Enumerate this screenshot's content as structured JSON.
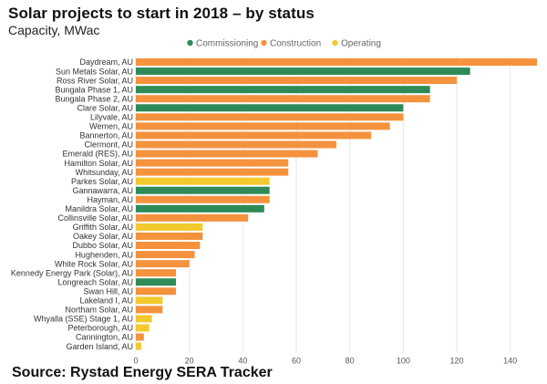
{
  "title": "Solar projects to start in 2018 – by status",
  "subtitle": "Capacity, MWac",
  "source": "Source: Rystad Energy SERA Tracker",
  "colors": {
    "Commissioning": "#2e8b57",
    "Construction": "#f5923e",
    "Operating": "#f2c92e",
    "axis_text": "#555555",
    "grid": "#e6e6e6"
  },
  "chart_data": {
    "type": "bar",
    "orientation": "horizontal",
    "xlim": [
      0,
      150
    ],
    "x_ticks": [
      0,
      20,
      40,
      60,
      80,
      100,
      120,
      140
    ],
    "grid": true,
    "legend_position": "top",
    "legend": [
      "Commissioning",
      "Construction",
      "Operating"
    ],
    "categories": [
      "Daydream, AU",
      "Sun Metals Solar, AU",
      "Ross River Solar, AU",
      "Bungala Phase 1, AU",
      "Bungala Phase 2, AU",
      "Clare Solar, AU",
      "Lilyvale, AU",
      "Wemen, AU",
      "Bannerton, AU",
      "Clermont, AU",
      "Emerald (RES), AU",
      "Hamilton Solar, AU",
      "Whitsunday, AU",
      "Parkes Solar, AU",
      "Gannawarra, AU",
      "Hayman, AU",
      "Manildra Solar, AU",
      "Collinsville Solar, AU",
      "Griffith Solar, AU",
      "Oakey Solar, AU",
      "Dubbo Solar, AU",
      "Hughenden, AU",
      "White Rock Solar, AU",
      "Kennedy Energy Park (Solar), AU",
      "Longreach Solar, AU",
      "Swan Hill, AU",
      "Lakeland I, AU",
      "Northam Solar, AU",
      "Whyalla (SSE) Stage 1, AU",
      "Peterborough, AU",
      "Cannington, AU",
      "Garden Island, AU"
    ],
    "values": [
      150,
      125,
      120,
      110,
      110,
      100,
      100,
      95,
      88,
      75,
      68,
      57,
      57,
      50,
      50,
      50,
      48,
      42,
      25,
      25,
      24,
      22,
      20,
      15,
      15,
      15,
      10,
      10,
      6,
      5,
      3,
      2
    ],
    "status": [
      "Construction",
      "Commissioning",
      "Construction",
      "Commissioning",
      "Construction",
      "Commissioning",
      "Construction",
      "Construction",
      "Construction",
      "Construction",
      "Construction",
      "Construction",
      "Construction",
      "Operating",
      "Commissioning",
      "Construction",
      "Commissioning",
      "Construction",
      "Operating",
      "Construction",
      "Construction",
      "Construction",
      "Construction",
      "Construction",
      "Commissioning",
      "Construction",
      "Operating",
      "Construction",
      "Operating",
      "Operating",
      "Construction",
      "Operating"
    ]
  }
}
